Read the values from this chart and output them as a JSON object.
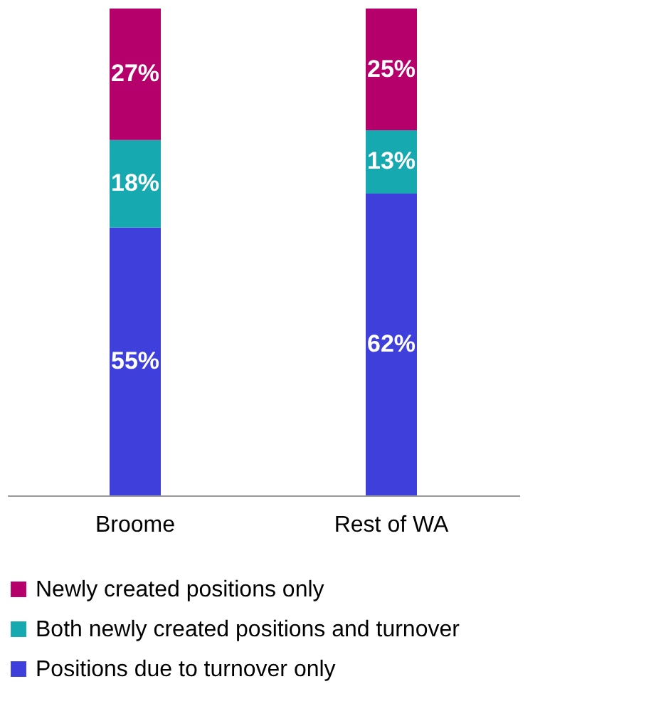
{
  "chart_data": {
    "type": "bar",
    "stacked": true,
    "categories": [
      "Broome",
      "Rest of WA"
    ],
    "series": [
      {
        "name": "Positions due to turnover only",
        "color": "#3f3fdc",
        "values": [
          55,
          62
        ],
        "value_labels": [
          "55%",
          "62%"
        ]
      },
      {
        "name": "Both newly created positions and turnover",
        "color": "#17a9b0",
        "values": [
          18,
          13
        ],
        "value_labels": [
          "18%",
          "13%"
        ]
      },
      {
        "name": "Newly created positions only",
        "color": "#b5006b",
        "values": [
          27,
          25
        ],
        "value_labels": [
          "27%",
          "25%"
        ]
      }
    ],
    "legend": "bottom"
  }
}
